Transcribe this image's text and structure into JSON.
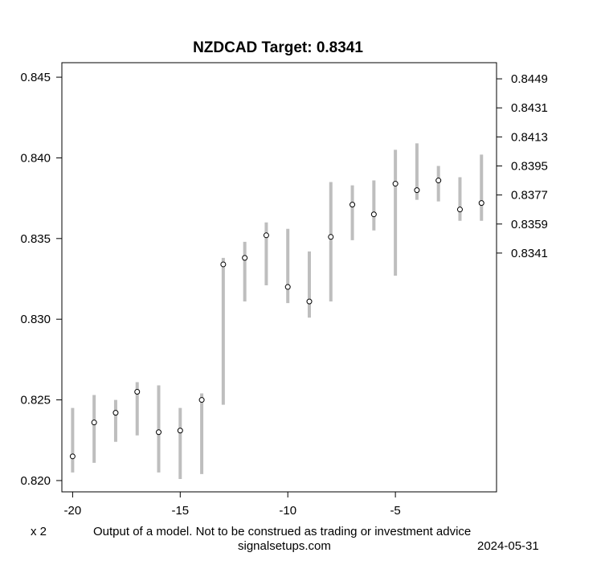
{
  "chart_data": {
    "type": "scatter",
    "title": "NZDCAD Target: 0.8341",
    "x": [
      -20,
      -19,
      -18,
      -17,
      -16,
      -15,
      -14,
      -13,
      -12,
      -11,
      -10,
      -9,
      -8,
      -7,
      -6,
      -5,
      -4,
      -3,
      -2,
      -1
    ],
    "series": [
      {
        "values": [
          0.8215,
          0.8236,
          0.8242,
          0.8255,
          0.823,
          0.8231,
          0.825,
          0.8334,
          0.8338,
          0.8352,
          0.832,
          0.8311,
          0.8351,
          0.8371,
          0.8365,
          0.8384,
          0.838,
          0.8386,
          0.8368,
          0.8372
        ],
        "low": [
          0.8205,
          0.8211,
          0.8224,
          0.8228,
          0.8205,
          0.8201,
          0.8204,
          0.8247,
          0.8311,
          0.8321,
          0.831,
          0.8301,
          0.8311,
          0.8349,
          0.8355,
          0.8327,
          0.8374,
          0.8373,
          0.8361,
          0.8361
        ],
        "high": [
          0.8245,
          0.8253,
          0.825,
          0.8261,
          0.8259,
          0.8245,
          0.8254,
          0.8338,
          0.8348,
          0.836,
          0.8356,
          0.8342,
          0.8385,
          0.8383,
          0.8386,
          0.8405,
          0.8409,
          0.8395,
          0.8388,
          0.8402
        ]
      }
    ],
    "xlim": [
      -20.5,
      -0.3
    ],
    "ylim": [
      0.8193,
      0.8459
    ],
    "x_ticks": [
      -20,
      -15,
      -10,
      -5
    ],
    "x_tick_labels": [
      "-20",
      "-15",
      "-10",
      "-5"
    ],
    "y_ticks": [
      0.82,
      0.825,
      0.83,
      0.835,
      0.84,
      0.845
    ],
    "y_tick_labels": [
      "0.820",
      "0.825",
      "0.830",
      "0.835",
      "0.840",
      "0.845"
    ],
    "y2_ticks": [
      0.8449,
      0.8431,
      0.8413,
      0.8395,
      0.8377,
      0.8359,
      0.8341
    ],
    "y2_tick_labels": [
      "0.8449",
      "0.8431",
      "0.8413",
      "0.8395",
      "0.8377",
      "0.8359",
      "0.8341"
    ],
    "grid": false,
    "colors": {
      "range_bar": "#bebebe",
      "point_fill": "#ffffff",
      "point_stroke": "#000000"
    }
  },
  "footer": {
    "multiplier": "x 2",
    "disclaimer": "Output of a model. Not to be construed as trading or investment advice",
    "source": "signalsetups.com",
    "date": "2024-05-31"
  }
}
